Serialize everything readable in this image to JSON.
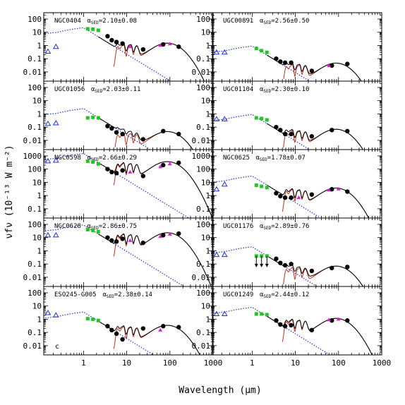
{
  "figure": {
    "xlabel": "Wavelength (μm)",
    "ylabel": "νfν (10⁻¹³ W m⁻²)",
    "corner_letter": "c"
  },
  "chart_data": {
    "type": "scatter",
    "xscale": "log",
    "yscale": "log",
    "xlim": [
      0.12,
      1000
    ],
    "x_ticks": [
      "1",
      "10",
      "100",
      "1000"
    ],
    "layout": "5 rows x 2 columns",
    "colors": {
      "model_total": "#000000",
      "stellar_model": "#1f2fd6",
      "dust_model": "#c0301c",
      "uv_points": "#1f2fd6",
      "nir_points": "#22c522",
      "ir_points": "#000000",
      "iras_points": "#d81fd8"
    },
    "panels": [
      {
        "galaxy": "NGC0404",
        "alpha": "2.10±0.08",
        "ylim": [
          0.002,
          300
        ],
        "y_ticks": [
          "100",
          "10",
          "1",
          "0.1",
          "0.01"
        ],
        "uv": [
          [
            0.15,
            0.35
          ],
          [
            0.23,
            0.8
          ]
        ],
        "nir": [
          [
            1.25,
            18
          ],
          [
            1.65,
            17
          ],
          [
            2.2,
            14
          ]
        ],
        "ir": [
          [
            3.6,
            5
          ],
          [
            4.5,
            2.5
          ],
          [
            5.8,
            1.8
          ],
          [
            8,
            1.4
          ],
          [
            24,
            0.5
          ],
          [
            70,
            1.2
          ],
          [
            160,
            0.8
          ]
        ],
        "iras": [
          [
            12,
            0.8
          ],
          [
            60,
            1.0
          ],
          [
            100,
            1.3
          ]
        ],
        "stellar_peak": 22,
        "dust_peak": 1.3
      },
      {
        "galaxy": "UGC00891",
        "alpha": "2.56±0.50",
        "ylim": [
          0.002,
          300
        ],
        "y_ticks": [
          "100",
          "10",
          "1",
          "0.1",
          "0.01"
        ],
        "uv": [
          [
            0.15,
            0.3
          ],
          [
            0.23,
            0.3
          ]
        ],
        "nir": [
          [
            1.25,
            0.6
          ],
          [
            1.65,
            0.4
          ],
          [
            2.2,
            0.3
          ]
        ],
        "ir": [
          [
            3.6,
            0.1
          ],
          [
            4.5,
            0.06
          ],
          [
            5.8,
            0.05
          ],
          [
            8,
            0.05
          ],
          [
            24,
            0.012
          ],
          [
            70,
            0.03
          ],
          [
            160,
            0.04
          ]
        ],
        "iras": [
          [
            60,
            0.03
          ]
        ],
        "stellar_peak": 0.9,
        "dust_peak": 0.04
      },
      {
        "galaxy": "UGC01056",
        "alpha": "2.03±0.11",
        "ylim": [
          0.002,
          300
        ],
        "y_ticks": [
          "100",
          "10",
          "1",
          "0.1",
          "0.01"
        ],
        "uv": [
          [
            0.15,
            0.18
          ],
          [
            0.23,
            0.2
          ]
        ],
        "nir": [
          [
            1.25,
            0.5
          ],
          [
            1.65,
            0.55
          ],
          [
            2.2,
            0.5
          ]
        ],
        "ir": [
          [
            3.6,
            0.12
          ],
          [
            4.5,
            0.08
          ],
          [
            5.8,
            0.04
          ],
          [
            8,
            0.03
          ],
          [
            24,
            0.012
          ],
          [
            70,
            0.05
          ],
          [
            160,
            0.03
          ]
        ],
        "iras": [],
        "stellar_peak": 2.5,
        "dust_peak": 0.04
      },
      {
        "galaxy": "UGC01104",
        "alpha": "2.30±0.10",
        "ylim": [
          0.002,
          300
        ],
        "y_ticks": [
          "100",
          "10",
          "1",
          "0.1",
          "0.01"
        ],
        "uv": [
          [
            0.15,
            0.4
          ],
          [
            0.23,
            0.4
          ]
        ],
        "nir": [
          [
            1.25,
            0.5
          ],
          [
            1.65,
            0.45
          ],
          [
            2.2,
            0.35
          ]
        ],
        "ir": [
          [
            3.6,
            0.1
          ],
          [
            4.5,
            0.06
          ],
          [
            5.8,
            0.03
          ],
          [
            8,
            0.03
          ],
          [
            24,
            0.02
          ],
          [
            70,
            0.06
          ],
          [
            160,
            0.05
          ]
        ],
        "iras": [],
        "stellar_peak": 0.9,
        "dust_peak": 0.06
      },
      {
        "galaxy": "NGC0598",
        "alpha": "2.66±0.29",
        "ylim": [
          0.02,
          3000
        ],
        "y_ticks": [
          "1000",
          "100",
          "10",
          "1",
          "0.1"
        ],
        "uv": [
          [
            0.15,
            400
          ],
          [
            0.23,
            450
          ]
        ],
        "nir": [
          [
            1.25,
            400
          ],
          [
            1.65,
            350
          ],
          [
            2.2,
            250
          ]
        ],
        "ir": [
          [
            3.6,
            100
          ],
          [
            4.5,
            60
          ],
          [
            5.8,
            50
          ],
          [
            8,
            80
          ],
          [
            24,
            30
          ],
          [
            70,
            200
          ],
          [
            160,
            300
          ]
        ],
        "iras": [
          [
            12,
            60
          ],
          [
            60,
            150
          ],
          [
            100,
            250
          ]
        ],
        "stellar_peak": 1500,
        "dust_peak": 320
      },
      {
        "galaxy": "NGC0625",
        "alpha": "1.78±0.07",
        "ylim": [
          0.02,
          3000
        ],
        "y_ticks": [
          "1000",
          "100",
          "10",
          "1",
          "0.1"
        ],
        "uv": [
          [
            0.15,
            3
          ],
          [
            0.23,
            7
          ]
        ],
        "nir": [
          [
            1.25,
            6
          ],
          [
            1.65,
            5
          ],
          [
            2.2,
            4
          ]
        ],
        "ir": [
          [
            3.6,
            1.5
          ],
          [
            4.5,
            0.9
          ],
          [
            5.8,
            0.7
          ],
          [
            8,
            0.7
          ],
          [
            24,
            1.2
          ],
          [
            70,
            3
          ],
          [
            160,
            2
          ]
        ],
        "iras": [
          [
            12,
            0.7
          ],
          [
            60,
            2.6
          ],
          [
            100,
            3.2
          ]
        ],
        "stellar_peak": 30,
        "dust_peak": 3.2
      },
      {
        "galaxy": "NGC0628",
        "alpha": "2.86±0.75",
        "ylim": [
          0.002,
          300
        ],
        "y_ticks": [
          "100",
          "10",
          "1",
          "0.1",
          "0.01"
        ],
        "uv": [
          [
            0.15,
            15
          ],
          [
            0.23,
            15
          ]
        ],
        "nir": [
          [
            1.25,
            40
          ],
          [
            1.65,
            35
          ],
          [
            2.2,
            28
          ]
        ],
        "ir": [
          [
            3.6,
            10
          ],
          [
            4.5,
            6
          ],
          [
            5.8,
            5
          ],
          [
            8,
            8
          ],
          [
            24,
            4
          ],
          [
            70,
            15
          ],
          [
            160,
            20
          ]
        ],
        "iras": [
          [
            12,
            6
          ],
          [
            60,
            12
          ],
          [
            100,
            18
          ]
        ],
        "stellar_peak": 90,
        "dust_peak": 20
      },
      {
        "galaxy": "UGC01176",
        "alpha": "2.89±0.76",
        "ylim": [
          0.002,
          300
        ],
        "y_ticks": [
          "100",
          "10",
          "1",
          "0.1",
          "0.01"
        ],
        "uv": [
          [
            0.15,
            0.5
          ],
          [
            0.23,
            0.5
          ]
        ],
        "nir": [
          [
            1.25,
            0.4
          ],
          [
            1.65,
            0.4
          ],
          [
            2.2,
            0.4
          ]
        ],
        "ir": [
          [
            3.6,
            0.25
          ],
          [
            4.5,
            0.12
          ],
          [
            5.8,
            0.08
          ],
          [
            8,
            0.1
          ],
          [
            24,
            0.03
          ],
          [
            70,
            0.05
          ],
          [
            160,
            0.06
          ]
        ],
        "iras": [],
        "upper_limits": [
          [
            1.25,
            0.4
          ],
          [
            1.65,
            0.4
          ],
          [
            2.2,
            0.4
          ]
        ],
        "stellar_peak": 2.0,
        "dust_peak": 0.06
      },
      {
        "galaxy": "ESO245-G005",
        "alpha": "2.38±0.14",
        "ylim": [
          0.002,
          300
        ],
        "y_ticks": [
          "100",
          "10",
          "1",
          "0.1",
          "0.01"
        ],
        "uv": [
          [
            0.15,
            3
          ],
          [
            0.23,
            2
          ]
        ],
        "nir": [
          [
            1.25,
            1.1
          ],
          [
            1.65,
            1.0
          ],
          [
            2.2,
            0.8
          ]
        ],
        "ir": [
          [
            3.6,
            0.3
          ],
          [
            4.5,
            0.15
          ],
          [
            5.8,
            0.08
          ],
          [
            8,
            0.03
          ],
          [
            24,
            0.2
          ],
          [
            70,
            0.3
          ],
          [
            160,
            0.25
          ]
        ],
        "iras": [
          [
            60,
            0.15
          ]
        ],
        "stellar_peak": 3.5,
        "dust_peak": 0.3
      },
      {
        "galaxy": "UGC01249",
        "alpha": "2.44±0.12",
        "ylim": [
          0.002,
          300
        ],
        "y_ticks": [
          "100",
          "10",
          "1",
          "0.1",
          "0.01"
        ],
        "uv": [
          [
            0.15,
            2.5
          ],
          [
            0.23,
            2.5
          ]
        ],
        "nir": [
          [
            1.25,
            2.5
          ],
          [
            1.65,
            2.5
          ],
          [
            2.2,
            2.2
          ]
        ],
        "ir": [
          [
            3.6,
            0.8
          ],
          [
            4.5,
            0.4
          ],
          [
            5.8,
            0.3
          ],
          [
            8,
            0.35
          ],
          [
            24,
            0.15
          ],
          [
            70,
            0.8
          ],
          [
            160,
            0.8
          ]
        ],
        "iras": [
          [
            60,
            0.9
          ],
          [
            100,
            1.0
          ]
        ],
        "stellar_peak": 8,
        "dust_peak": 1.0
      }
    ]
  }
}
